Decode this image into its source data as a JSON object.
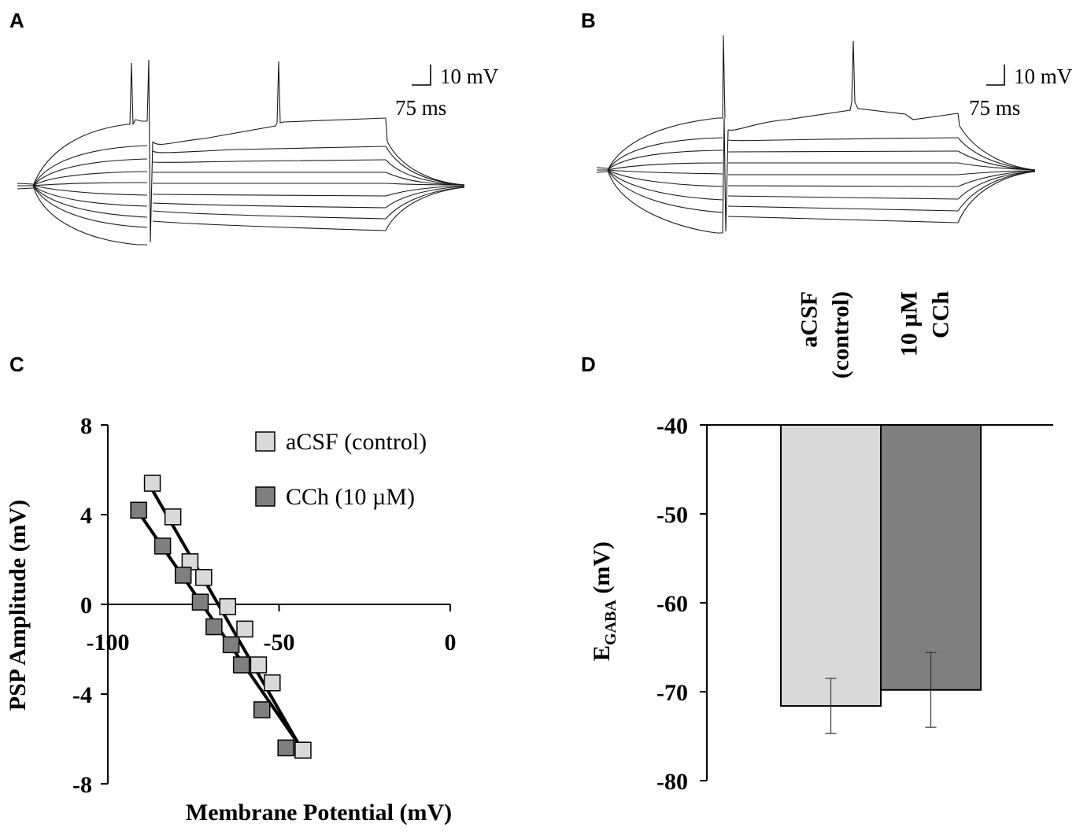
{
  "panels": {
    "a": {
      "letter": "A",
      "scale_v": "10 mV",
      "scale_t": "75 ms"
    },
    "b": {
      "letter": "B",
      "scale_v": "10 mV",
      "scale_t": "75 ms"
    },
    "c": {
      "letter": "C"
    },
    "d": {
      "letter": "D"
    }
  },
  "chart_data": [
    {
      "type": "scatter",
      "panel": "C",
      "title": "",
      "xlabel": "Membrane Potential (mV)",
      "ylabel": "PSP Amplitude (mV)",
      "xlim": [
        -100,
        0
      ],
      "ylim": [
        -8,
        8
      ],
      "xticks": [
        -100,
        -50,
        0
      ],
      "yticks": [
        -8,
        -4,
        0,
        4,
        8
      ],
      "xtick_labels": [
        "-100",
        "-50",
        "0"
      ],
      "ytick_labels": [
        "-8",
        "-4",
        "0",
        "4",
        "8"
      ],
      "legend_position": "top-right",
      "series": [
        {
          "name": "aCSF (control)",
          "color": "#d9d9d9",
          "x": [
            -87,
            -81,
            -76,
            -72,
            -65,
            -60,
            -56,
            -52,
            -43
          ],
          "y": [
            5.4,
            3.9,
            1.9,
            1.2,
            -0.1,
            -1.1,
            -2.7,
            -3.5,
            -6.5
          ],
          "fit": {
            "x": [
              -87,
              -44
            ],
            "y": [
              5.1,
              -6.3
            ]
          }
        },
        {
          "name": "CCh (10 µM)",
          "color": "#7f7f7f",
          "x": [
            -91,
            -84,
            -78,
            -73,
            -69,
            -64,
            -61,
            -55,
            -48
          ],
          "y": [
            4.2,
            2.6,
            1.3,
            0.1,
            -1.0,
            -1.8,
            -2.7,
            -4.7,
            -6.4
          ],
          "fit": {
            "x": [
              -91,
              -44
            ],
            "y": [
              4.1,
              -6.3
            ]
          }
        }
      ]
    },
    {
      "type": "bar",
      "panel": "D",
      "title": "",
      "xlabel": "",
      "ylabel": "E",
      "ylabel_sub": "GABA",
      "ylabel_unit": " (mV)",
      "ylim": [
        -80,
        -40
      ],
      "yticks": [
        -40,
        -50,
        -60,
        -70,
        -80
      ],
      "ytick_labels": [
        "-40",
        "-50",
        "-60",
        "-70",
        "-80"
      ],
      "categories": [
        "aCSF (control)",
        "10 µM CCh"
      ],
      "category_lines": [
        [
          "aCSF",
          "(control)"
        ],
        [
          "10 µM",
          "CCh"
        ]
      ],
      "values": [
        -71.6,
        -69.8
      ],
      "errors": [
        3.1,
        4.2
      ],
      "colors": [
        "#d9d9d9",
        "#7f7f7f"
      ]
    }
  ]
}
